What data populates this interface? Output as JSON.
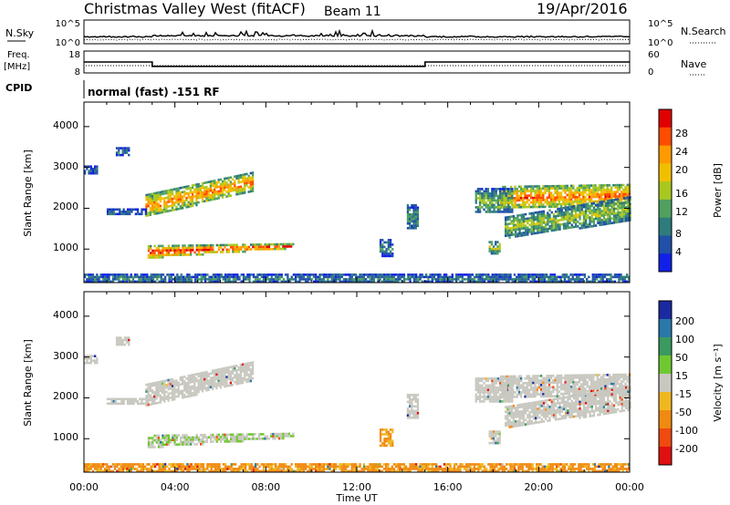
{
  "header": {
    "station": "Christmas Valley West (fitACF)",
    "beam": "Beam 11",
    "date": "19/Apr/2016"
  },
  "noise_panel": {
    "left_label": "N.Sky",
    "right_label": "N.Search",
    "left_ticks": [
      "10^5",
      "10^0"
    ],
    "right_ticks": [
      "10^5",
      "10^0"
    ]
  },
  "freq_panel": {
    "left_label_1": "Freq.",
    "left_label_2": "[MHz]",
    "right_label": "Nave",
    "left_ticks": [
      "18",
      "8"
    ],
    "right_ticks": [
      "60",
      "0"
    ]
  },
  "cpid": {
    "label": "CPID",
    "mode": "normal (fast) -151 RF"
  },
  "power_colorbar": {
    "label": "Power [dB]",
    "ticks": [
      "28",
      "24",
      "20",
      "16",
      "12",
      "8",
      "4"
    ],
    "colors": [
      "#e00000",
      "#ff4c00",
      "#ff9a00",
      "#f0c000",
      "#a8c820",
      "#50a060",
      "#2e7c7c",
      "#2050a8",
      "#1020e8"
    ]
  },
  "velocity_colorbar": {
    "label": "Velocity [m s⁻¹]",
    "ticks": [
      "200",
      "100",
      "50",
      "15",
      "-15",
      "-50",
      "-100",
      "-200"
    ],
    "colors": [
      "#1a2aa0",
      "#2a78a8",
      "#3a9a60",
      "#70c830",
      "#c8c8c0",
      "#f0b820",
      "#f08a10",
      "#f04a10",
      "#e01010"
    ]
  },
  "axes": {
    "ylabel": "Slant Range [km]",
    "xlabel": "Time UT",
    "yticks": [
      "1000",
      "2000",
      "3000",
      "4000"
    ],
    "xticks": [
      "00:00",
      "04:00",
      "08:00",
      "12:00",
      "16:00",
      "20:00",
      "00:00"
    ]
  },
  "chart_data": {
    "type": "heatmap",
    "x_range_hours": [
      0,
      24
    ],
    "y_range_km": [
      180,
      4600
    ],
    "power_scale_db": [
      0,
      30
    ],
    "freq_mhz": {
      "x": [
        0,
        3,
        3,
        15,
        15,
        24
      ],
      "values": [
        13,
        13,
        11,
        11,
        13,
        13
      ]
    },
    "echo_regions": [
      {
        "t0": 2.7,
        "t1": 7.4,
        "r0_start": 1800,
        "r1_start": 2350,
        "r0_end": 2450,
        "r1_end": 2900,
        "power": 21,
        "velocity": 0
      },
      {
        "t0": 2.8,
        "t1": 9.2,
        "r0_start": 800,
        "r1_start": 1100,
        "r0_end": 1050,
        "r1_end": 1150,
        "power": 25,
        "velocity": 10
      },
      {
        "t0": 18.3,
        "t1": 24,
        "r0_start": 2000,
        "r1_start": 2550,
        "r0_end": 2100,
        "r1_end": 2600,
        "power": 22,
        "velocity": 0
      },
      {
        "t0": 18.5,
        "t1": 24,
        "r0_start": 1300,
        "r1_start": 1800,
        "r0_end": 1700,
        "r1_end": 2300,
        "power": 14,
        "velocity": 0
      },
      {
        "t0": 17.2,
        "t1": 18.8,
        "r0_start": 1900,
        "r1_start": 2500,
        "r0_end": 1900,
        "r1_end": 2500,
        "power": 12,
        "velocity": 0
      },
      {
        "t0": 13.0,
        "t1": 13.6,
        "r0_start": 850,
        "r1_start": 1250,
        "r0_end": 850,
        "r1_end": 1250,
        "power": 8,
        "velocity": -40
      },
      {
        "t0": 14.2,
        "t1": 14.7,
        "r0_start": 1500,
        "r1_start": 2100,
        "r0_end": 1500,
        "r1_end": 2100,
        "power": 10,
        "velocity": 0
      },
      {
        "t0": 0.0,
        "t1": 0.6,
        "r0_start": 2850,
        "r1_start": 3050,
        "r0_end": 2850,
        "r1_end": 3050,
        "power": 6,
        "velocity": 0
      },
      {
        "t0": 1.4,
        "t1": 2.0,
        "r0_start": 3300,
        "r1_start": 3500,
        "r0_end": 3300,
        "r1_end": 3500,
        "power": 7,
        "velocity": 0
      },
      {
        "t0": 1.0,
        "t1": 2.7,
        "r0_start": 1850,
        "r1_start": 2000,
        "r0_end": 1850,
        "r1_end": 2000,
        "power": 6,
        "velocity": 0
      },
      {
        "t0": 17.8,
        "t1": 18.3,
        "r0_start": 900,
        "r1_start": 1200,
        "r0_end": 900,
        "r1_end": 1200,
        "power": 14,
        "velocity": 0
      },
      {
        "t0": 0.0,
        "t1": 24,
        "r0_start": 200,
        "r1_start": 400,
        "r0_end": 200,
        "r1_end": 400,
        "power": 8,
        "velocity": -40
      }
    ]
  }
}
